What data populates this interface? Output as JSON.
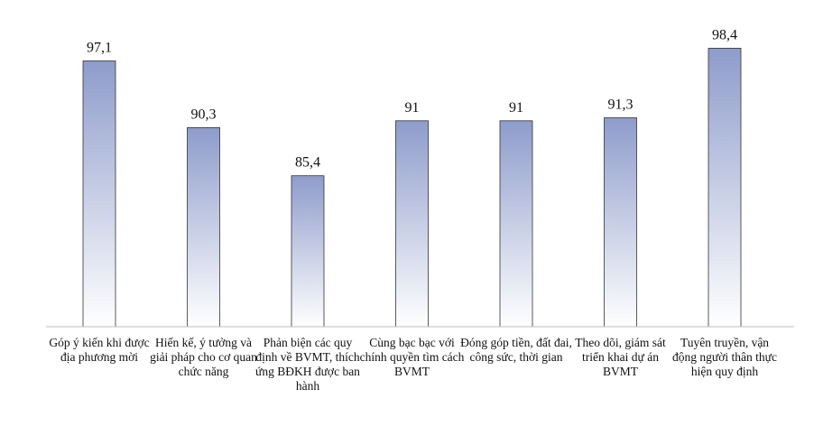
{
  "chart_data": {
    "type": "bar",
    "title": "",
    "xlabel": "",
    "ylabel": "",
    "categories": [
      "Góp ý kiến khi được địa phương mời",
      "Hiến kế, ý tưởng và giải pháp cho cơ quan chức năng",
      "Phản biện các quy định về BVMT, thích ứng BĐKH được ban hành",
      "Cùng bạc bạc với chính quyền tìm cách BVMT",
      "Đóng góp tiền, đất đai, công sức, thời gian",
      "Theo dõi, giám sát triển khai dự án BVMT",
      "Tuyên truyền, vận động người thân thực hiện quy định"
    ],
    "values": [
      97.1,
      90.3,
      85.4,
      91,
      91,
      91.3,
      98.4
    ],
    "value_labels": [
      "97,1",
      "90,3",
      "85,4",
      "91",
      "91",
      "91,3",
      "98,4"
    ],
    "ylim": [
      70,
      100
    ],
    "grid": false,
    "colors": {
      "bar_top": "#8e9ccb",
      "bar_bottom": "#ffffff",
      "bar_stroke": "#333333",
      "axis": "#bfbfbf"
    }
  }
}
